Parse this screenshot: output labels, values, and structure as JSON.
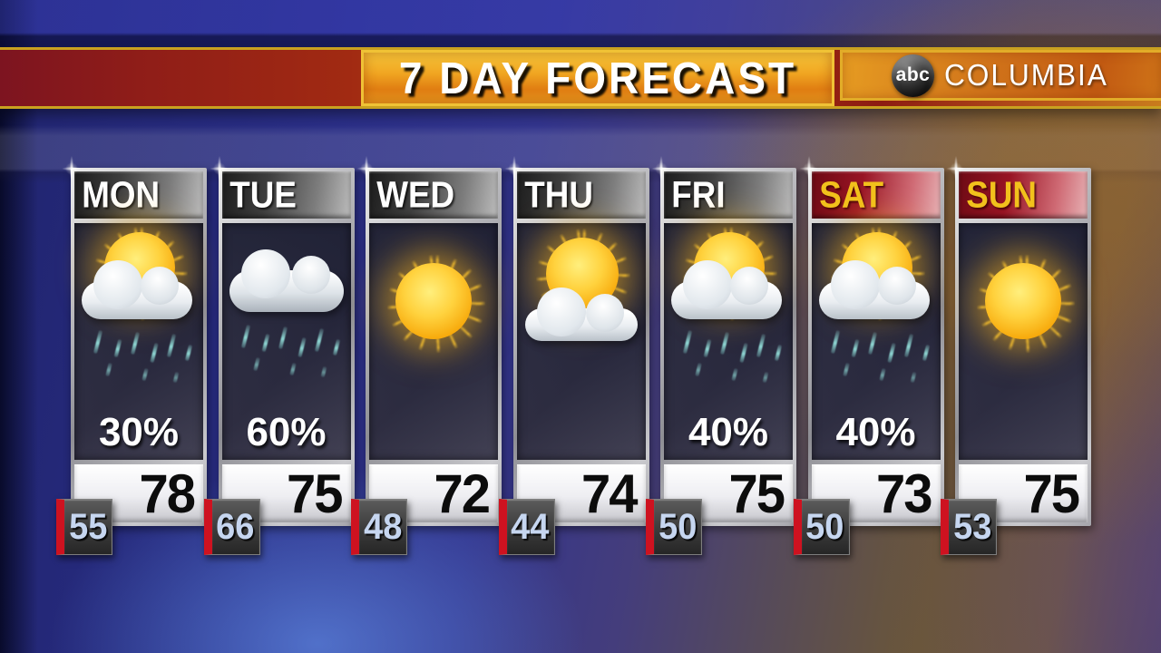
{
  "banner": {
    "title": "7 DAY FORECAST"
  },
  "station": {
    "logo_text": "abc",
    "name": "COLUMBIA"
  },
  "forecast": {
    "days": [
      {
        "label": "MON",
        "weekend": false,
        "icon": "sun-cloud-rain",
        "condition": "partly-sunny-showers",
        "precip": "30%",
        "high": "78",
        "low": "55"
      },
      {
        "label": "TUE",
        "weekend": false,
        "icon": "cloud-rain",
        "condition": "cloudy-rain",
        "precip": "60%",
        "high": "75",
        "low": "66"
      },
      {
        "label": "WED",
        "weekend": false,
        "icon": "sun",
        "condition": "sunny",
        "precip": "",
        "high": "72",
        "low": "48"
      },
      {
        "label": "THU",
        "weekend": false,
        "icon": "sun-cloud",
        "condition": "mostly-sunny",
        "precip": "",
        "high": "74",
        "low": "44"
      },
      {
        "label": "FRI",
        "weekend": false,
        "icon": "sun-cloud-rain",
        "condition": "partly-sunny-showers",
        "precip": "40%",
        "high": "75",
        "low": "50"
      },
      {
        "label": "SAT",
        "weekend": true,
        "icon": "sun-cloud-rain",
        "condition": "partly-sunny-showers",
        "precip": "40%",
        "high": "73",
        "low": "50"
      },
      {
        "label": "SUN",
        "weekend": true,
        "icon": "sun",
        "condition": "sunny",
        "precip": "",
        "high": "75",
        "low": "53"
      }
    ]
  },
  "colors": {
    "banner_gold": "#f0c235",
    "banner_orange": "#e8981e",
    "banner_red": "#8f1d18",
    "weekend_red": "#981424",
    "weekend_text_gold": "#f2c11c",
    "rain_teal": "#8fd8d4",
    "low_temp_blue": "#c6d6f0",
    "low_stripe_red": "#ce1220"
  }
}
